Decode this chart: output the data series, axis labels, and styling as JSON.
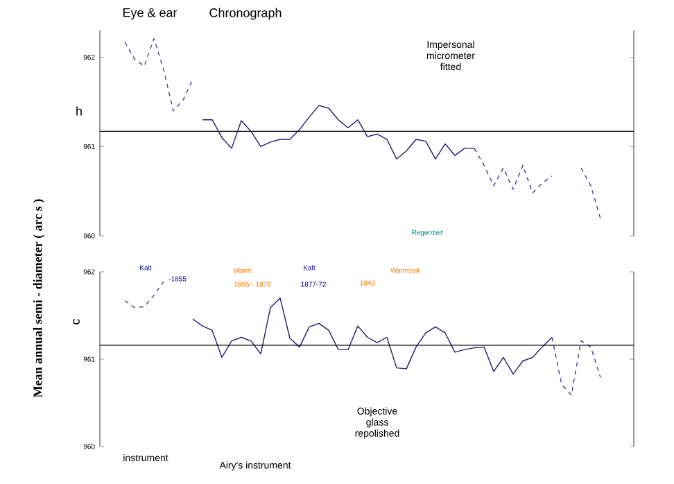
{
  "chart_data": [
    {
      "type": "line",
      "ylabel": "Mean annual semi - diameter ( arc s )",
      "annotations": [
        "Eye & ear",
        "Chronograph",
        "Impersonal micrometer fitted",
        "h"
      ],
      "categories": [
        null,
        null,
        null,
        null,
        null,
        null,
        null,
        null,
        null,
        null,
        null,
        null,
        null,
        null,
        null,
        null,
        null,
        null,
        null,
        null,
        null,
        null,
        null,
        null,
        null,
        null,
        null,
        null,
        null,
        null,
        null,
        null,
        null,
        null,
        null,
        null,
        null,
        null,
        null,
        null,
        null,
        null,
        null,
        null,
        null,
        null,
        null,
        null,
        null,
        null,
        null
      ],
      "series": [
        {
          "color": "#5a3a8a",
          "line_style": "dashed",
          "values": [
            962.17,
            961.98,
            961.9,
            962.21,
            961.86,
            961.4,
            961.52,
            961.75,
            null,
            null,
            null,
            null,
            null,
            null,
            null,
            null,
            null,
            null,
            null,
            null,
            null,
            null,
            null,
            null,
            null,
            null,
            null,
            null,
            null,
            null,
            null,
            null,
            null,
            null,
            null,
            null,
            null,
            null,
            null,
            null,
            null,
            null,
            null,
            null,
            null,
            null,
            null,
            null,
            null,
            null,
            null
          ]
        },
        {
          "color": "#1c1c70",
          "line_style": "solid",
          "values": [
            null,
            null,
            null,
            null,
            null,
            null,
            null,
            null,
            961.3,
            961.3,
            961.1,
            960.98,
            961.29,
            961.17,
            961.0,
            961.05,
            961.08,
            961.08,
            961.19,
            961.33,
            961.46,
            961.43,
            961.3,
            961.21,
            961.3,
            961.11,
            961.14,
            961.08,
            960.86,
            960.95,
            961.08,
            961.06,
            960.86,
            961.03,
            960.9,
            960.98,
            960.98,
            null,
            null,
            null,
            null,
            null,
            null,
            null,
            null,
            null,
            null,
            null,
            null,
            null,
            null
          ]
        },
        {
          "color": "#3a3a9a",
          "line_style": "dashed",
          "values": [
            null,
            null,
            null,
            null,
            null,
            null,
            null,
            null,
            null,
            null,
            null,
            null,
            null,
            null,
            null,
            null,
            null,
            null,
            null,
            null,
            null,
            null,
            null,
            null,
            null,
            null,
            null,
            null,
            null,
            null,
            null,
            null,
            null,
            null,
            null,
            null,
            960.98,
            960.79,
            960.56,
            960.76,
            960.52,
            960.79,
            960.48,
            960.59,
            960.67,
            null,
            null,
            960.76,
            960.56,
            960.19,
            null
          ]
        }
      ],
      "ylim": [
        960,
        962.3
      ],
      "yticks": [
        960,
        961,
        962
      ],
      "tick_labels": "y",
      "ref_lines": [
        {
          "axis": "y",
          "value": 961.17,
          "color": "#000000"
        }
      ]
    },
    {
      "type": "line",
      "annotations": [
        "c",
        "instrument",
        "Airy's instrument",
        "Objective glass repolished",
        "Kalt",
        "-1855",
        "Warm",
        "1855 - 1876",
        "Kalt",
        "1877-72",
        "Warmzeit",
        "1842",
        "Regenzeit"
      ],
      "categories": [
        null,
        null,
        null,
        null,
        null,
        null,
        null,
        null,
        null,
        null,
        null,
        null,
        null,
        null,
        null,
        null,
        null,
        null,
        null,
        null,
        null,
        null,
        null,
        null,
        null,
        null,
        null,
        null,
        null,
        null,
        null,
        null,
        null,
        null,
        null,
        null,
        null,
        null,
        null,
        null,
        null,
        null,
        null,
        null,
        null,
        null,
        null,
        null,
        null,
        null,
        null
      ],
      "series": [
        {
          "color": "#5a3a8a",
          "line_style": "dashed",
          "values": [
            961.67,
            961.59,
            961.6,
            961.73,
            961.89,
            null,
            null,
            null,
            null,
            null,
            null,
            null,
            null,
            null,
            null,
            null,
            null,
            null,
            null,
            null,
            null,
            null,
            null,
            null,
            null,
            null,
            null,
            null,
            null,
            null,
            null,
            null,
            null,
            null,
            null,
            null,
            null,
            null,
            null,
            null,
            null,
            null,
            null,
            null,
            null,
            null,
            null,
            null,
            null,
            null,
            null
          ]
        },
        {
          "color": "#1c1c70",
          "line_style": "solid",
          "values": [
            null,
            null,
            null,
            null,
            null,
            null,
            null,
            961.46,
            961.38,
            961.33,
            961.02,
            961.21,
            961.25,
            961.21,
            961.06,
            961.59,
            961.7,
            961.24,
            961.14,
            961.37,
            961.41,
            961.33,
            961.11,
            961.11,
            961.38,
            961.25,
            961.19,
            961.25,
            960.9,
            960.89,
            961.14,
            961.3,
            961.37,
            961.3,
            961.08,
            961.11,
            961.13,
            961.14,
            960.86,
            961.02,
            960.83,
            960.98,
            961.02,
            961.14,
            961.25,
            null,
            null,
            null,
            null,
            null,
            null
          ]
        },
        {
          "color": "#3a3a9a",
          "line_style": "dashed",
          "values": [
            null,
            null,
            null,
            null,
            null,
            null,
            null,
            null,
            null,
            null,
            null,
            null,
            null,
            null,
            null,
            null,
            null,
            null,
            null,
            null,
            null,
            null,
            null,
            null,
            null,
            null,
            null,
            null,
            null,
            null,
            null,
            null,
            null,
            null,
            null,
            null,
            null,
            null,
            null,
            null,
            null,
            null,
            null,
            null,
            961.25,
            960.71,
            960.59,
            961.21,
            961.14,
            960.79,
            null
          ]
        }
      ],
      "ylim": [
        960,
        962
      ],
      "yticks": [
        960,
        961,
        962
      ],
      "tick_labels": "y",
      "ref_lines": [
        {
          "axis": "y",
          "value": 961.16,
          "color": "#000000"
        }
      ]
    }
  ]
}
